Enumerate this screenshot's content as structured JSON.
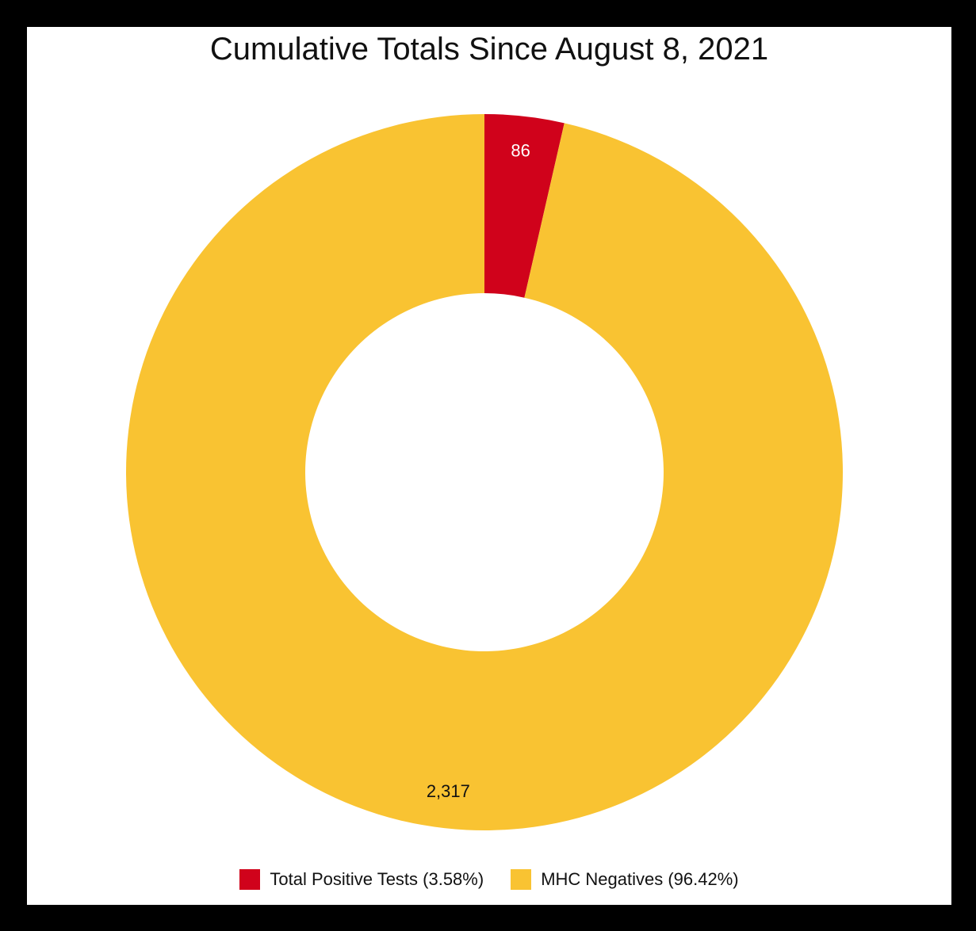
{
  "chart_data": {
    "type": "pie",
    "title": "Cumulative Totals Since August 8, 2021",
    "donut": true,
    "slices": [
      {
        "label": "Total Positive Tests",
        "value": 86,
        "value_label": "86",
        "percent_label": "3.58%",
        "color": "#d0021b",
        "label_color": "#ffffff"
      },
      {
        "label": "MHC Negatives",
        "value": 2317,
        "value_label": "2,317",
        "percent_label": "96.42%",
        "color": "#f9c332",
        "label_color": "#111111"
      }
    ],
    "legend": {
      "placement": "bottom",
      "items": [
        {
          "text": "Total Positive Tests (3.58%)",
          "color": "#d0021b"
        },
        {
          "text": "MHC Negatives (96.42%)",
          "color": "#f9c332"
        }
      ]
    }
  }
}
